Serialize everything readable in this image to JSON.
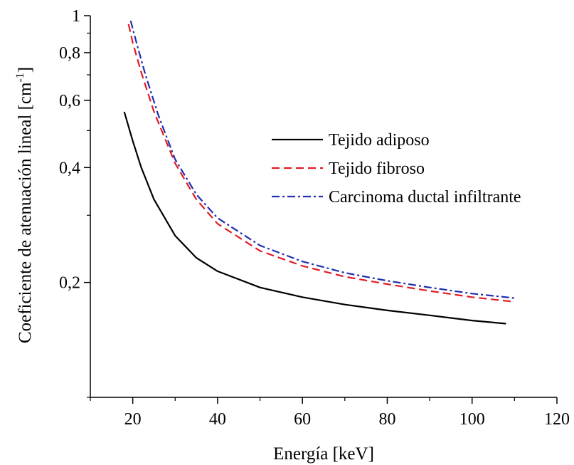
{
  "chart_data": {
    "type": "line",
    "xlabel": "Energía [keV]",
    "ylabel": "Coeficiente de atenuación lineal [cm",
    "ylabel_sup": "-1",
    "ylabel_close": "]",
    "xlim": [
      10,
      120
    ],
    "ylim": [
      0.1,
      1.0
    ],
    "y_scale": "log",
    "grid": false,
    "legend_position": "center-right",
    "x_ticks": [
      20,
      40,
      60,
      80,
      100,
      120
    ],
    "x_tick_labels": [
      "20",
      "40",
      "60",
      "80",
      "100",
      "120"
    ],
    "y_ticks": [
      0.2,
      0.4,
      0.6,
      0.8,
      1.0
    ],
    "y_tick_labels": [
      "0,2",
      "0,4",
      "0,6",
      "0,8",
      "1"
    ],
    "y_minor_ticks": [
      0.1,
      0.3,
      0.5,
      0.7,
      0.9
    ],
    "series": [
      {
        "name": "Tejido adiposo",
        "color": "#000000",
        "dash": "solid",
        "x": [
          18,
          20,
          22,
          25,
          30,
          35,
          40,
          50,
          60,
          70,
          80,
          90,
          100,
          108
        ],
        "y": [
          0.56,
          0.47,
          0.4,
          0.33,
          0.265,
          0.232,
          0.214,
          0.194,
          0.183,
          0.175,
          0.169,
          0.164,
          0.159,
          0.156
        ]
      },
      {
        "name": "Tejido fibroso",
        "color": "#e01b24",
        "dash": "dashed",
        "x": [
          19,
          20,
          22,
          25,
          30,
          35,
          40,
          50,
          60,
          70,
          80,
          90,
          100,
          110
        ],
        "y": [
          0.95,
          0.85,
          0.71,
          0.56,
          0.41,
          0.33,
          0.285,
          0.242,
          0.221,
          0.207,
          0.198,
          0.19,
          0.183,
          0.178
        ]
      },
      {
        "name": "Carcinoma ductal infiltrante",
        "color": "#1f2fb0",
        "dash": "dash-dot",
        "x": [
          19.5,
          21,
          23,
          26,
          30,
          35,
          40,
          50,
          60,
          70,
          80,
          90,
          100,
          110
        ],
        "y": [
          0.97,
          0.84,
          0.7,
          0.55,
          0.42,
          0.34,
          0.295,
          0.25,
          0.227,
          0.212,
          0.202,
          0.194,
          0.187,
          0.182
        ]
      }
    ]
  }
}
